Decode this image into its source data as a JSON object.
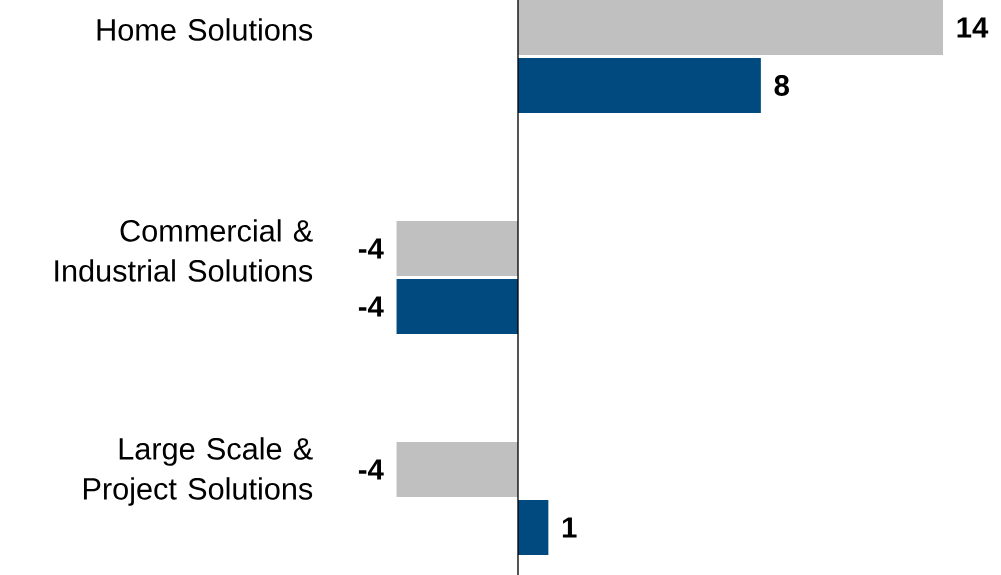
{
  "chart_data": {
    "type": "bar",
    "orientation": "horizontal",
    "data_labels": true,
    "categories": [
      "Home Solutions",
      "Commercial & Industrial Solutions",
      "Large Scale & Project Solutions"
    ],
    "series": [
      {
        "color": "#c0c0c0",
        "values": [
          14,
          -4,
          -4
        ]
      },
      {
        "color": "#004a80",
        "values": [
          8,
          -4,
          1
        ]
      }
    ]
  }
}
